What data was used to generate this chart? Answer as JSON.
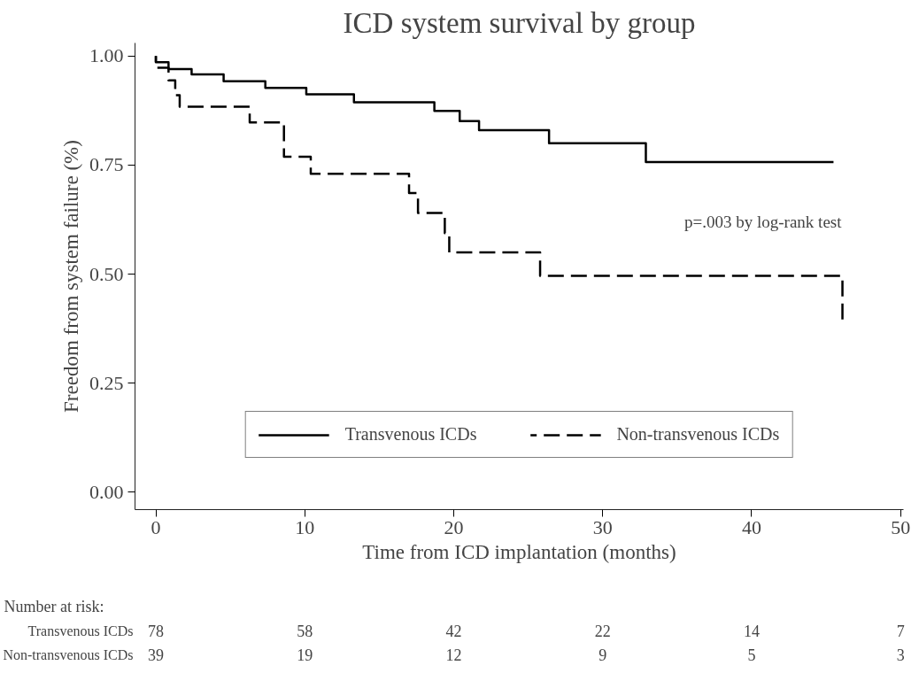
{
  "chart_data": {
    "type": "step",
    "title": "ICD system survival by group",
    "xlabel": "Time from ICD implantation (months)",
    "ylabel": "Freedom from system failure (%)",
    "series": [
      {
        "name": "Transvenous ICDs",
        "color": "#000000",
        "line_style": "solid",
        "x": [
          0,
          0,
          0.85,
          2.4,
          4.55,
          7.35,
          10.1,
          13.3,
          18.7,
          20.4,
          21.7,
          26.4,
          32.9,
          45.5
        ],
        "values": [
          1.0,
          0.986,
          0.97,
          0.958,
          0.942,
          0.927,
          0.912,
          0.894,
          0.874,
          0.851,
          0.83,
          0.8,
          0.757,
          0.757
        ]
      },
      {
        "name": "Non-transvenous ICDs",
        "color": "#000000",
        "line_style": "dashed",
        "x": [
          0,
          0,
          0.85,
          1.3,
          1.6,
          6.3,
          8.6,
          10.4,
          17.0,
          17.6,
          19.4,
          19.7,
          25.8,
          46.1,
          46.4
        ],
        "values": [
          1.0,
          0.973,
          0.944,
          0.91,
          0.884,
          0.848,
          0.769,
          0.73,
          0.686,
          0.64,
          0.594,
          0.55,
          0.496,
          0.392,
          0.392
        ]
      }
    ],
    "xlim": [
      -1.4,
      50.2
    ],
    "ylim": [
      -0.04,
      1.03
    ],
    "xticks": [
      0,
      10,
      20,
      30,
      40,
      50
    ],
    "yticks": [
      {
        "value": 0,
        "label": "0.00"
      },
      {
        "value": 0.25,
        "label": "0.25"
      },
      {
        "value": 0.5,
        "label": "0.50"
      },
      {
        "value": 0.75,
        "label": "0.75"
      },
      {
        "value": 1,
        "label": "1.00"
      }
    ],
    "grid": false,
    "legend": "bottom",
    "marker": "none",
    "annotations": [
      "p=.003 by log-rank test",
      "Number at risk:",
      "Transvenous ICDs",
      "78",
      "58",
      "42",
      "22",
      "14",
      "7",
      "Non-transvenous ICDs",
      "39",
      "19",
      "12",
      "9",
      "5",
      "3"
    ]
  }
}
